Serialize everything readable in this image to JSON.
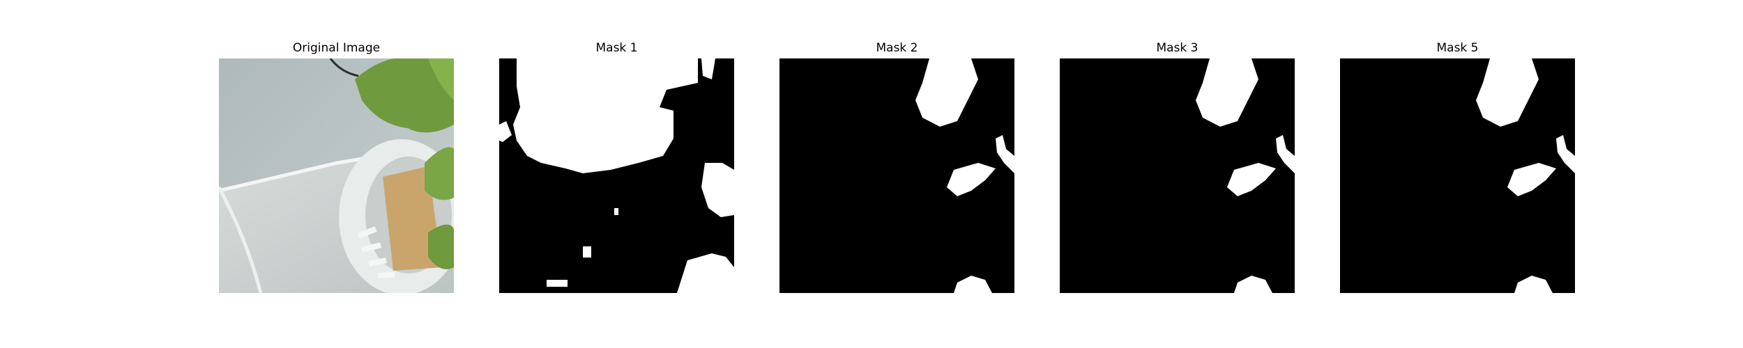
{
  "panels": [
    {
      "title": "Original Image"
    },
    {
      "title": "Mask 1"
    },
    {
      "title": "Mask 2"
    },
    {
      "title": "Mask 3"
    },
    {
      "title": "Mask 5"
    }
  ],
  "colors": {
    "background": "#ffffff",
    "mask_background": "#000000",
    "mask_foreground": "#ffffff",
    "photo_wall": "#b8c2c2",
    "photo_pot": "#e8ecea",
    "photo_leaf": "#6f9a3e",
    "photo_sponge": "#c9a56b"
  }
}
